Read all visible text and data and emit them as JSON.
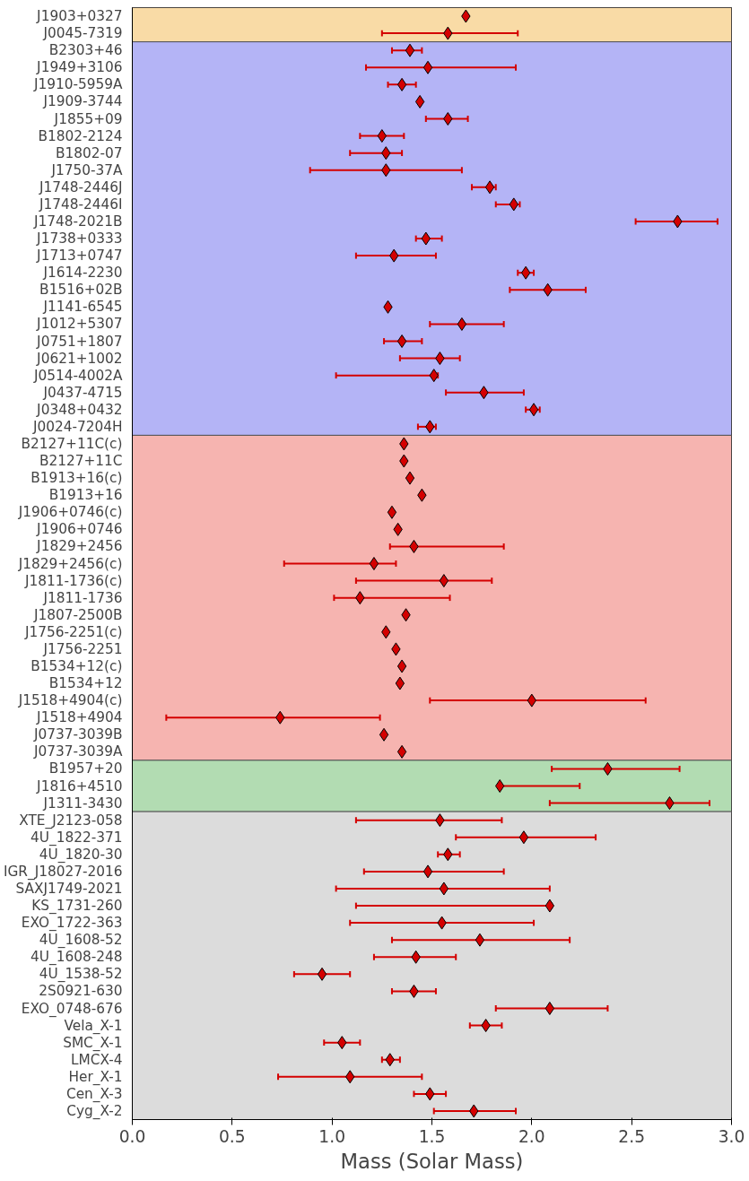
{
  "chart_data": {
    "type": "scatter",
    "xlabel": "Mass (Solar Mass)",
    "categories": [
      "J1903+0327",
      "J0045-7319",
      "B2303+46",
      "J1949+3106",
      "J1910-5959A",
      "J1909-3744",
      "J1855+09",
      "B1802-2124",
      "B1802-07",
      "J1750-37A",
      "J1748-2446J",
      "J1748-2446I",
      "J1748-2021B",
      "J1738+0333",
      "J1713+0747",
      "J1614-2230",
      "B1516+02B",
      "J1141-6545",
      "J1012+5307",
      "J0751+1807",
      "J0621+1002",
      "J0514-4002A",
      "J0437-4715",
      "J0348+0432",
      "J0024-7204H",
      "B2127+11C(c)",
      "B2127+11C",
      "B1913+16(c)",
      "B1913+16",
      "J1906+0746(c)",
      "J1906+0746",
      "J1829+2456",
      "J1829+2456(c)",
      "J1811-1736(c)",
      "J1811-1736",
      "J1807-2500B",
      "J1756-2251(c)",
      "J1756-2251",
      "B1534+12(c)",
      "B1534+12",
      "J1518+4904(c)",
      "J1518+4904",
      "J0737-3039B",
      "J0737-3039A",
      "B1957+20",
      "J1816+4510",
      "J1311-3430",
      "XTE_J2123-058",
      "4U_1822-371",
      "4U_1820-30",
      "IGR_J18027-2016",
      "SAXJ1749-2021",
      "KS_1731-260",
      "EXO_1722-363",
      "4U_1608-52",
      "4U_1608-248",
      "4U_1538-52",
      "2S0921-630",
      "EXO_0748-676",
      "Vela_X-1",
      "SMC_X-1",
      "LMCX-4",
      "Her_X-1",
      "Cen_X-3",
      "Cyg_X-2"
    ],
    "series": [
      {
        "color": "#d40000",
        "values": [
          1.67,
          1.58,
          1.39,
          1.48,
          1.35,
          1.44,
          1.58,
          1.25,
          1.27,
          1.27,
          1.79,
          1.91,
          2.73,
          1.47,
          1.31,
          1.97,
          2.08,
          1.28,
          1.65,
          1.35,
          1.54,
          1.51,
          1.76,
          2.01,
          1.49,
          1.36,
          1.36,
          1.39,
          1.45,
          1.3,
          1.33,
          1.41,
          1.21,
          1.56,
          1.14,
          1.37,
          1.27,
          1.32,
          1.35,
          1.34,
          2.0,
          0.74,
          1.26,
          1.35,
          2.38,
          1.84,
          2.69,
          1.54,
          1.96,
          1.58,
          1.48,
          1.56,
          2.09,
          1.55,
          1.74,
          1.42,
          0.95,
          1.41,
          2.09,
          1.77,
          1.05,
          1.29,
          1.09,
          1.49,
          1.71
        ],
        "errors": [
          null,
          [
            1.25,
            1.93
          ],
          [
            1.3,
            1.45
          ],
          [
            1.17,
            1.92
          ],
          [
            1.28,
            1.42
          ],
          null,
          [
            1.47,
            1.68
          ],
          [
            1.14,
            1.36
          ],
          [
            1.09,
            1.35
          ],
          [
            0.89,
            1.65
          ],
          [
            1.7,
            1.82
          ],
          [
            1.82,
            1.94
          ],
          [
            2.52,
            2.93
          ],
          [
            1.42,
            1.55
          ],
          [
            1.12,
            1.52
          ],
          [
            1.93,
            2.01
          ],
          [
            1.89,
            2.27
          ],
          null,
          [
            1.49,
            1.86
          ],
          [
            1.26,
            1.45
          ],
          [
            1.34,
            1.64
          ],
          [
            1.02,
            1.53
          ],
          [
            1.57,
            1.96
          ],
          [
            1.97,
            2.04
          ],
          [
            1.43,
            1.52
          ],
          null,
          null,
          null,
          null,
          null,
          null,
          [
            1.29,
            1.86
          ],
          [
            0.76,
            1.32
          ],
          [
            1.12,
            1.8
          ],
          [
            1.01,
            1.59
          ],
          null,
          null,
          null,
          null,
          null,
          [
            1.49,
            2.57
          ],
          [
            0.17,
            1.24
          ],
          null,
          null,
          [
            2.1,
            2.74
          ],
          [
            1.84,
            2.24
          ],
          [
            2.09,
            2.89
          ],
          [
            1.12,
            1.85
          ],
          [
            1.62,
            2.32
          ],
          [
            1.53,
            1.64
          ],
          [
            1.16,
            1.86
          ],
          [
            1.02,
            2.09
          ],
          [
            1.12,
            2.1
          ],
          [
            1.09,
            2.01
          ],
          [
            1.3,
            2.19
          ],
          [
            1.21,
            1.62
          ],
          [
            0.81,
            1.09
          ],
          [
            1.3,
            1.52
          ],
          [
            1.82,
            2.38
          ],
          [
            1.69,
            1.85
          ],
          [
            0.96,
            1.14
          ],
          [
            1.25,
            1.34
          ],
          [
            0.73,
            1.45
          ],
          [
            1.41,
            1.57
          ],
          [
            1.51,
            1.92
          ]
        ]
      }
    ],
    "bands": [
      {
        "axis": "y",
        "from": "J1903+0327",
        "to": "J0045-7319",
        "color": "#f9dba6"
      },
      {
        "axis": "y",
        "from": "B2303+46",
        "to": "J0024-7204H",
        "color": "#b4b4f6"
      },
      {
        "axis": "y",
        "from": "B2127+11C(c)",
        "to": "J0737-3039A",
        "color": "#f6b4b0"
      },
      {
        "axis": "y",
        "from": "B1957+20",
        "to": "J1311-3430",
        "color": "#b2dcb2"
      },
      {
        "axis": "y",
        "from": "XTE_J2123-058",
        "to": "Cyg_X-2",
        "color": "#dcdcdc"
      }
    ],
    "marker": "diamond",
    "orientation": "horizontal",
    "xlim": [
      0,
      3
    ],
    "xticks": [
      {
        "value": 0,
        "label": "0.0"
      },
      {
        "value": 0.5,
        "label": "0.5"
      },
      {
        "value": 1,
        "label": "1.0"
      },
      {
        "value": 1.5,
        "label": "1.5"
      },
      {
        "value": 2,
        "label": "2.0"
      },
      {
        "value": 2.5,
        "label": "2.5"
      },
      {
        "value": 3,
        "label": "3.0"
      }
    ],
    "grid": false
  }
}
